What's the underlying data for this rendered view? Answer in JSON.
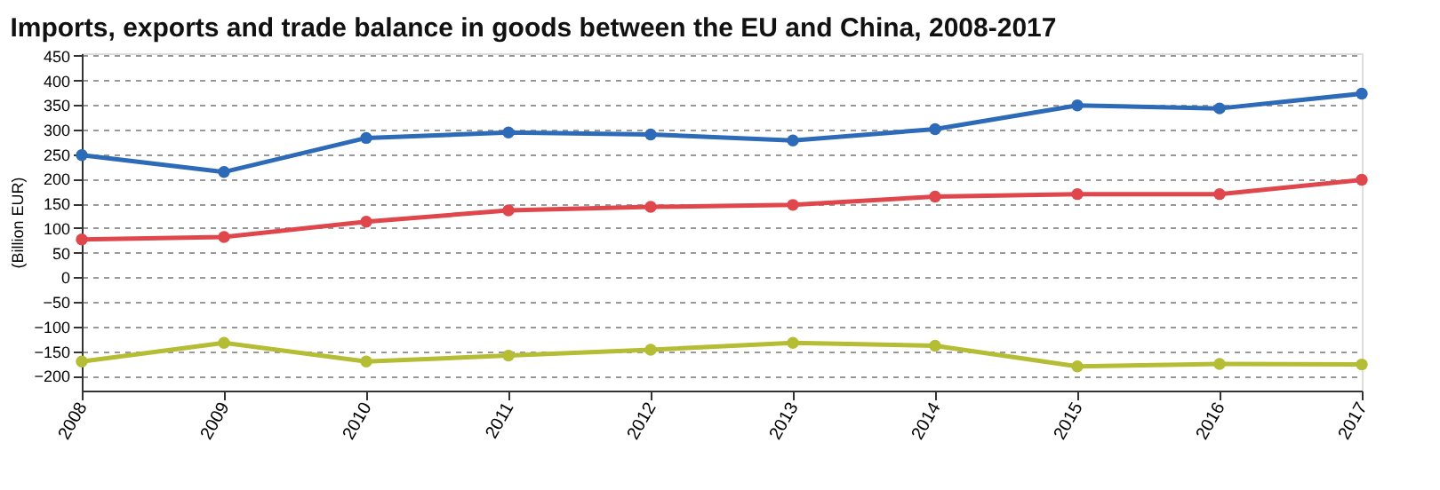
{
  "chart_data": {
    "type": "line",
    "title": "Imports, exports and trade balance in goods between the EU and China, 2008-2017",
    "ylabel": "(Billion EUR)",
    "categories": [
      "2008",
      "2009",
      "2010",
      "2011",
      "2012",
      "2013",
      "2014",
      "2015",
      "2016",
      "2017"
    ],
    "series": [
      {
        "color": "#2d6bb8",
        "values": [
          248,
          214,
          283,
          294,
          290,
          278,
          301,
          349,
          343,
          373
        ]
      },
      {
        "color": "#e0474c",
        "values": [
          77,
          82,
          113,
          136,
          143,
          147,
          164,
          169,
          169,
          198
        ]
      },
      {
        "color": "#b5bd35",
        "values": [
          -171,
          -133,
          -171,
          -159,
          -147,
          -133,
          -139,
          -181,
          -176,
          -177
        ]
      }
    ],
    "ylim": [
      -230,
      455
    ],
    "yticks": [
      -200,
      -150,
      -100,
      -50,
      0,
      50,
      100,
      150,
      200,
      250,
      300,
      350,
      400,
      450
    ],
    "grid": "y",
    "marker": "circle",
    "line_style": "solid",
    "legend": false
  }
}
